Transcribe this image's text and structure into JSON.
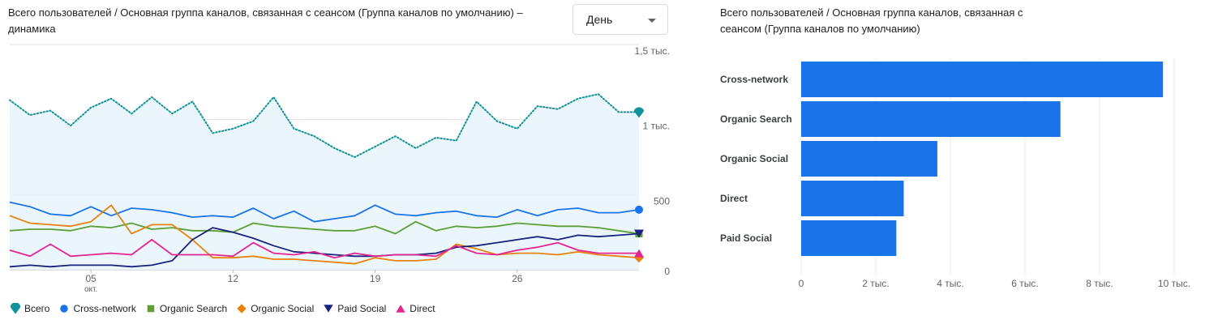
{
  "line_title": "Всего пользователей / Основная группа каналов, связанная с сеансом (Группа каналов по умолчанию) – динамика",
  "bar_title": "Всего пользователей / Основная группа каналов, связанная с сеансом (Группа каналов по умолчанию)",
  "period_select": {
    "value": "День"
  },
  "chart_data": [
    {
      "type": "line",
      "y_ticks": [
        "0",
        "500",
        "1 тыс.",
        "1,5 тыс."
      ],
      "ylim": [
        0,
        1500
      ],
      "x_ticks": [
        {
          "label": "05",
          "sub": "окт.",
          "index": 4
        },
        {
          "label": "12",
          "index": 11
        },
        {
          "label": "19",
          "index": 18
        },
        {
          "label": "26",
          "index": 25
        }
      ],
      "grid": true,
      "legend_position": "bottom",
      "series": [
        {
          "name": "Всего",
          "color": "#12939a",
          "marker": "pin",
          "style": "dotted",
          "area": true,
          "values": [
            1130,
            1030,
            1060,
            960,
            1080,
            1140,
            1040,
            1150,
            1040,
            1120,
            910,
            940,
            990,
            1150,
            940,
            890,
            810,
            750,
            820,
            890,
            810,
            880,
            860,
            1120,
            990,
            940,
            1090,
            1070,
            1140,
            1170,
            1050,
            1050
          ]
        },
        {
          "name": "Cross-network",
          "color": "#1a73e8",
          "marker": "circle",
          "values": [
            450,
            420,
            370,
            360,
            420,
            360,
            410,
            400,
            380,
            350,
            360,
            350,
            410,
            340,
            390,
            320,
            340,
            360,
            430,
            370,
            360,
            380,
            390,
            360,
            350,
            400,
            360,
            400,
            410,
            380,
            380,
            400
          ]
        },
        {
          "name": "Organic Search",
          "color": "#5f9e35",
          "marker": "square",
          "values": [
            260,
            270,
            270,
            260,
            290,
            280,
            310,
            270,
            280,
            260,
            260,
            250,
            310,
            290,
            280,
            270,
            260,
            260,
            290,
            240,
            320,
            260,
            290,
            280,
            290,
            310,
            300,
            290,
            290,
            280,
            260,
            240
          ]
        },
        {
          "name": "Organic Social",
          "color": "#e8830e",
          "marker": "diamond",
          "values": [
            360,
            310,
            300,
            290,
            320,
            430,
            240,
            300,
            300,
            200,
            80,
            80,
            90,
            70,
            70,
            60,
            50,
            40,
            80,
            60,
            60,
            70,
            170,
            140,
            100,
            110,
            110,
            100,
            120,
            100,
            90,
            80
          ]
        },
        {
          "name": "Paid Social",
          "color": "#1a237e",
          "marker": "triangle-down",
          "values": [
            20,
            30,
            20,
            30,
            30,
            30,
            20,
            30,
            60,
            200,
            280,
            250,
            210,
            160,
            120,
            110,
            100,
            90,
            90,
            100,
            100,
            110,
            150,
            160,
            180,
            200,
            220,
            200,
            230,
            220,
            230,
            240
          ]
        },
        {
          "name": "Direct",
          "color": "#e52592",
          "marker": "triangle-up",
          "values": [
            130,
            90,
            170,
            90,
            100,
            110,
            100,
            200,
            100,
            100,
            100,
            90,
            180,
            110,
            100,
            120,
            80,
            110,
            90,
            100,
            100,
            90,
            160,
            110,
            100,
            130,
            150,
            180,
            130,
            110,
            110,
            110
          ]
        }
      ]
    },
    {
      "type": "bar",
      "orientation": "horizontal",
      "categories": [
        "Cross-network",
        "Organic Search",
        "Organic Social",
        "Direct",
        "Paid Social"
      ],
      "values": [
        9700,
        6950,
        3650,
        2750,
        2550
      ],
      "color": "#1a73e8",
      "x_ticks": [
        "0",
        "2 тыс.",
        "4 тыс.",
        "6 тыс.",
        "8 тыс.",
        "10 тыс."
      ],
      "xlim": [
        0,
        10000
      ],
      "grid": true
    }
  ]
}
